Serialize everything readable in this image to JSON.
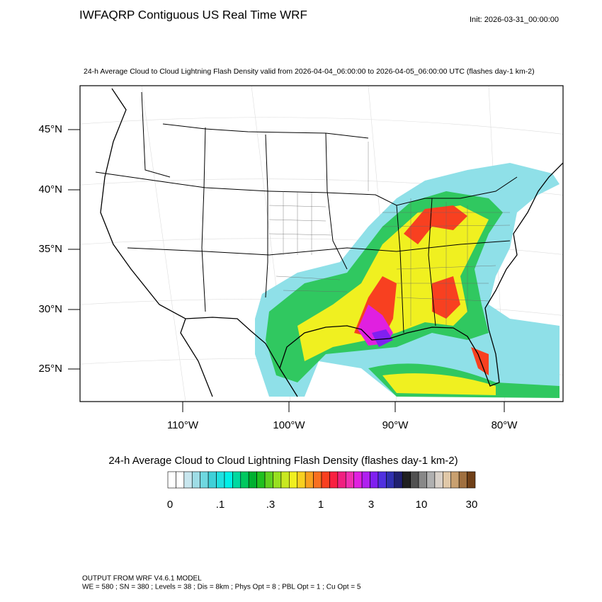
{
  "header": {
    "title": "IWFAQRP Contiguous US Real Time WRF",
    "init": "Init: 2026-03-31_00:00:00"
  },
  "map": {
    "subtitle": "24-h Average Cloud to Cloud Lightning Flash Density valid from 2026-04-04_06:00:00 to 2026-04-05_06:00:00 UTC   (flashes day-1 km-2)",
    "lat_labels": [
      "45°N",
      "40°N",
      "35°N",
      "30°N",
      "25°N"
    ],
    "lon_labels": [
      "110°W",
      "100°W",
      "90°W",
      "80°W"
    ]
  },
  "colorbar": {
    "title": "24-h Average Cloud to Cloud Lightning Flash Density  (flashes day-1 km-2)",
    "labels": [
      "0",
      ".1",
      ".3",
      "1",
      "3",
      "10",
      "30"
    ],
    "colors": [
      "#ffffff",
      "#ffffff",
      "#c8e6ee",
      "#9fdde6",
      "#6fd8e0",
      "#3fd0d8",
      "#20e0e0",
      "#00f0e8",
      "#00d8a0",
      "#00c860",
      "#00b030",
      "#20c020",
      "#60d020",
      "#98e020",
      "#c8e820",
      "#f0f020",
      "#f8d020",
      "#f8a020",
      "#f87020",
      "#f84020",
      "#f82040",
      "#f02080",
      "#f030b0",
      "#e020e0",
      "#b020f0",
      "#8020f0",
      "#5030e0",
      "#3030b0",
      "#202070",
      "#202020",
      "#505050",
      "#888888",
      "#b0b0b0",
      "#d8d0c8",
      "#e0c8a8",
      "#c8a070",
      "#a07040",
      "#704018"
    ]
  },
  "footer": {
    "lines": [
      "OUTPUT FROM WRF V4.6.1 MODEL",
      "WE = 580 ; SN = 380 ; Levels = 38 ; Dis = 8km ; Phys Opt = 8 ; PBL Opt = 1 ; Cu Opt = 5"
    ]
  }
}
